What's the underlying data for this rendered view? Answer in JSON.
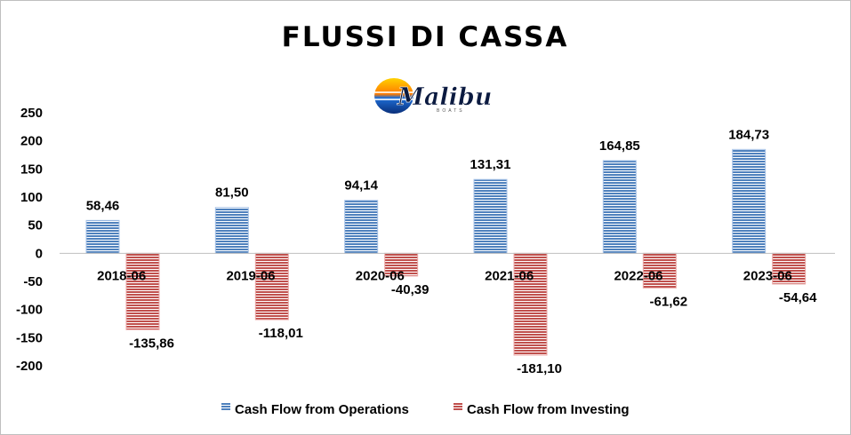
{
  "logo": {
    "brand": "Malibu",
    "sub": "BOATS"
  },
  "colors": {
    "operations": "#4f81bd",
    "operations_light": "#a9c4e8",
    "investing": "#c0504d",
    "investing_light": "#ecaaa8",
    "axis": "#bfbfbf"
  },
  "chart_data": {
    "type": "bar",
    "title": "FLUSSI DI CASSA",
    "categories": [
      "2018-06",
      "2019-06",
      "2020-06",
      "2021-06",
      "2022-06",
      "2023-06"
    ],
    "series": [
      {
        "name": "Cash Flow from Operations",
        "values": [
          58.46,
          81.5,
          94.14,
          131.31,
          164.85,
          184.73
        ],
        "labels": [
          "58,46",
          "81,50",
          "94,14",
          "131,31",
          "164,85",
          "184,73"
        ]
      },
      {
        "name": "Cash Flow from Investing",
        "values": [
          -135.86,
          -118.01,
          -40.39,
          -181.1,
          -61.62,
          -54.64
        ],
        "labels": [
          "-135,86",
          "-118,01",
          "-40,39",
          "-181,10",
          "-61,62",
          "-54,64"
        ]
      }
    ],
    "yticks": [
      250,
      200,
      150,
      100,
      50,
      0,
      -50,
      -100,
      -150,
      -200
    ],
    "ylim": [
      -200,
      250
    ],
    "grid": false,
    "legend": "bottom"
  }
}
